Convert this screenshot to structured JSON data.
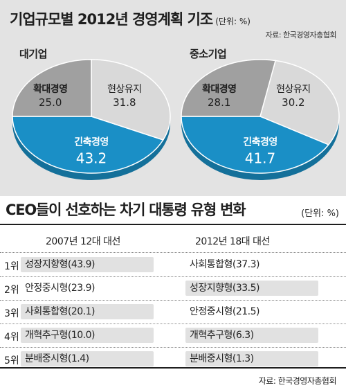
{
  "top": {
    "title": "기업규모별 2012년 경영계획 기조",
    "unit": "(단위: %)",
    "source": "자료: 한국경영자총협회"
  },
  "chart_data": [
    {
      "type": "pie",
      "title": "대기업",
      "slices": [
        {
          "label": "확대경영",
          "value_label": "25.0",
          "value": 25.0,
          "color": "#a0a0a0"
        },
        {
          "label": "현상유지",
          "value_label": "31.8",
          "value": 31.8,
          "color": "#d9d9d9"
        },
        {
          "label": "긴축경영",
          "value_label": "43.2",
          "value": 43.2,
          "color": "#1a8fc6"
        }
      ]
    },
    {
      "type": "pie",
      "title": "중소기업",
      "slices": [
        {
          "label": "확대경영",
          "value_label": "28.1",
          "value": 28.1,
          "color": "#a0a0a0"
        },
        {
          "label": "현상유지",
          "value_label": "30.2",
          "value": 30.2,
          "color": "#d9d9d9"
        },
        {
          "label": "긴축경영",
          "value_label": "41.7",
          "value": 41.7,
          "color": "#1a8fc6"
        }
      ]
    },
    {
      "type": "table",
      "title": "CEO들이 선호하는 차기 대통령 유형 변화",
      "unit": "(단위: %)",
      "columns": [
        "2007년 12대 대선",
        "2012년 18대 대선"
      ],
      "rows": [
        {
          "rank": "1위",
          "c1": "성장지향형(43.9)",
          "c2": "사회통합형(37.3)",
          "hl1": true,
          "hl2": false
        },
        {
          "rank": "2위",
          "c1": "안정중시형(23.9)",
          "c2": "성장지향형(33.5)",
          "hl1": false,
          "hl2": true
        },
        {
          "rank": "3위",
          "c1": "사회통합형(20.1)",
          "c2": "안정중시형(21.5)",
          "hl1": true,
          "hl2": false
        },
        {
          "rank": "4위",
          "c1": "개혁추구형(10.0)",
          "c2": "개혁추구형(6.3)",
          "hl1": true,
          "hl2": true
        },
        {
          "rank": "5위",
          "c1": "분배중시형(1.4)",
          "c2": "분배중시형(1.3)",
          "hl1": true,
          "hl2": true
        }
      ],
      "source": "자료: 한국경영자총협회"
    }
  ]
}
